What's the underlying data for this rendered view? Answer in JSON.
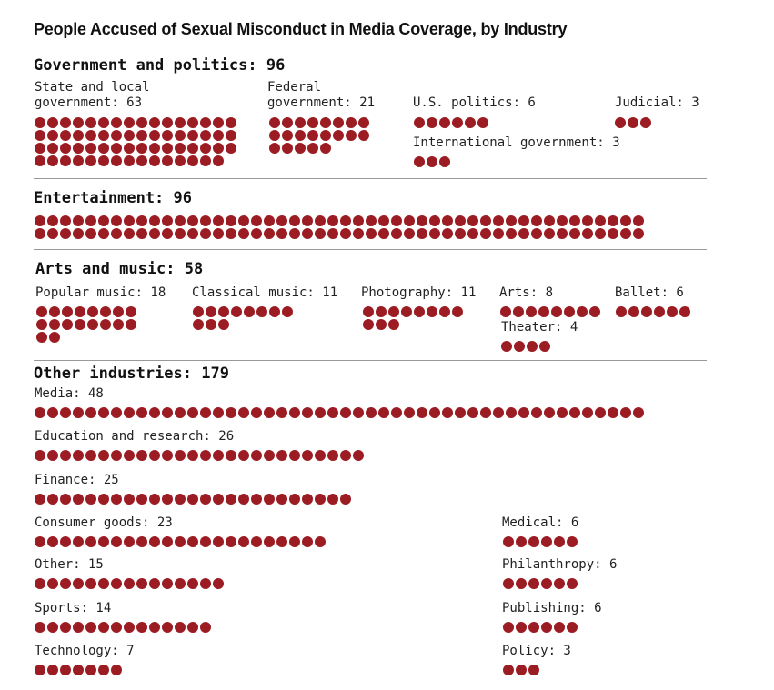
{
  "title": "People Accused of Sexual Misconduct in Media Coverage, by Industry",
  "colors": {
    "dot": "#9b1c22"
  },
  "chart_data": {
    "type": "unit-dot",
    "title": "People Accused of Sexual Misconduct in Media Coverage, by Industry",
    "sections": [
      {
        "id": "gov",
        "title": "Government and politics: 96",
        "name": "Government and politics",
        "total": 96,
        "groups": [
          {
            "id": "state",
            "label": "State and local\ngovernment: 63",
            "name": "State and local government",
            "value": 63
          },
          {
            "id": "federal",
            "label": "Federal\ngovernment: 21",
            "name": "Federal government",
            "value": 21
          },
          {
            "id": "uspolitics",
            "label": "U.S. politics: 6",
            "name": "U.S. politics",
            "value": 6
          },
          {
            "id": "judicial",
            "label": "Judicial: 3",
            "name": "Judicial",
            "value": 3
          },
          {
            "id": "intlgov",
            "label": "International government: 3",
            "name": "International government",
            "value": 3
          }
        ]
      },
      {
        "id": "ent",
        "title": "Entertainment: 96",
        "name": "Entertainment",
        "total": 96,
        "groups": [
          {
            "id": "entertainment",
            "label": "",
            "name": "Entertainment",
            "value": 96
          }
        ]
      },
      {
        "id": "arts",
        "title": "Arts and music: 58",
        "name": "Arts and music",
        "total": 58,
        "groups": [
          {
            "id": "popmusic",
            "label": "Popular music: 18",
            "name": "Popular music",
            "value": 18
          },
          {
            "id": "classical",
            "label": "Classical music: 11",
            "name": "Classical music",
            "value": 11
          },
          {
            "id": "photo",
            "label": "Photography: 11",
            "name": "Photography",
            "value": 11
          },
          {
            "id": "arts",
            "label": "Arts: 8",
            "name": "Arts",
            "value": 8
          },
          {
            "id": "ballet",
            "label": "Ballet: 6",
            "name": "Ballet",
            "value": 6
          },
          {
            "id": "theater",
            "label": "Theater: 4",
            "name": "Theater",
            "value": 4
          }
        ]
      },
      {
        "id": "other",
        "title": "Other industries: 179",
        "name": "Other industries",
        "total": 179,
        "groups": [
          {
            "id": "media",
            "label": "Media: 48",
            "name": "Media",
            "value": 48
          },
          {
            "id": "education",
            "label": "Education and research: 26",
            "name": "Education and research",
            "value": 26
          },
          {
            "id": "finance",
            "label": "Finance: 25",
            "name": "Finance",
            "value": 25
          },
          {
            "id": "consumer",
            "label": "Consumer goods: 23",
            "name": "Consumer goods",
            "value": 23
          },
          {
            "id": "other",
            "label": "Other: 15",
            "name": "Other",
            "value": 15
          },
          {
            "id": "sports",
            "label": "Sports: 14",
            "name": "Sports",
            "value": 14
          },
          {
            "id": "technology",
            "label": "Technology: 7",
            "name": "Technology",
            "value": 7
          },
          {
            "id": "medical",
            "label": "Medical: 6",
            "name": "Medical",
            "value": 6
          },
          {
            "id": "philanthropy",
            "label": "Philanthropy: 6",
            "name": "Philanthropy",
            "value": 6
          },
          {
            "id": "publishing",
            "label": "Publishing: 6",
            "name": "Publishing",
            "value": 6
          },
          {
            "id": "policy",
            "label": "Policy: 3",
            "name": "Policy",
            "value": 3
          }
        ]
      }
    ]
  }
}
